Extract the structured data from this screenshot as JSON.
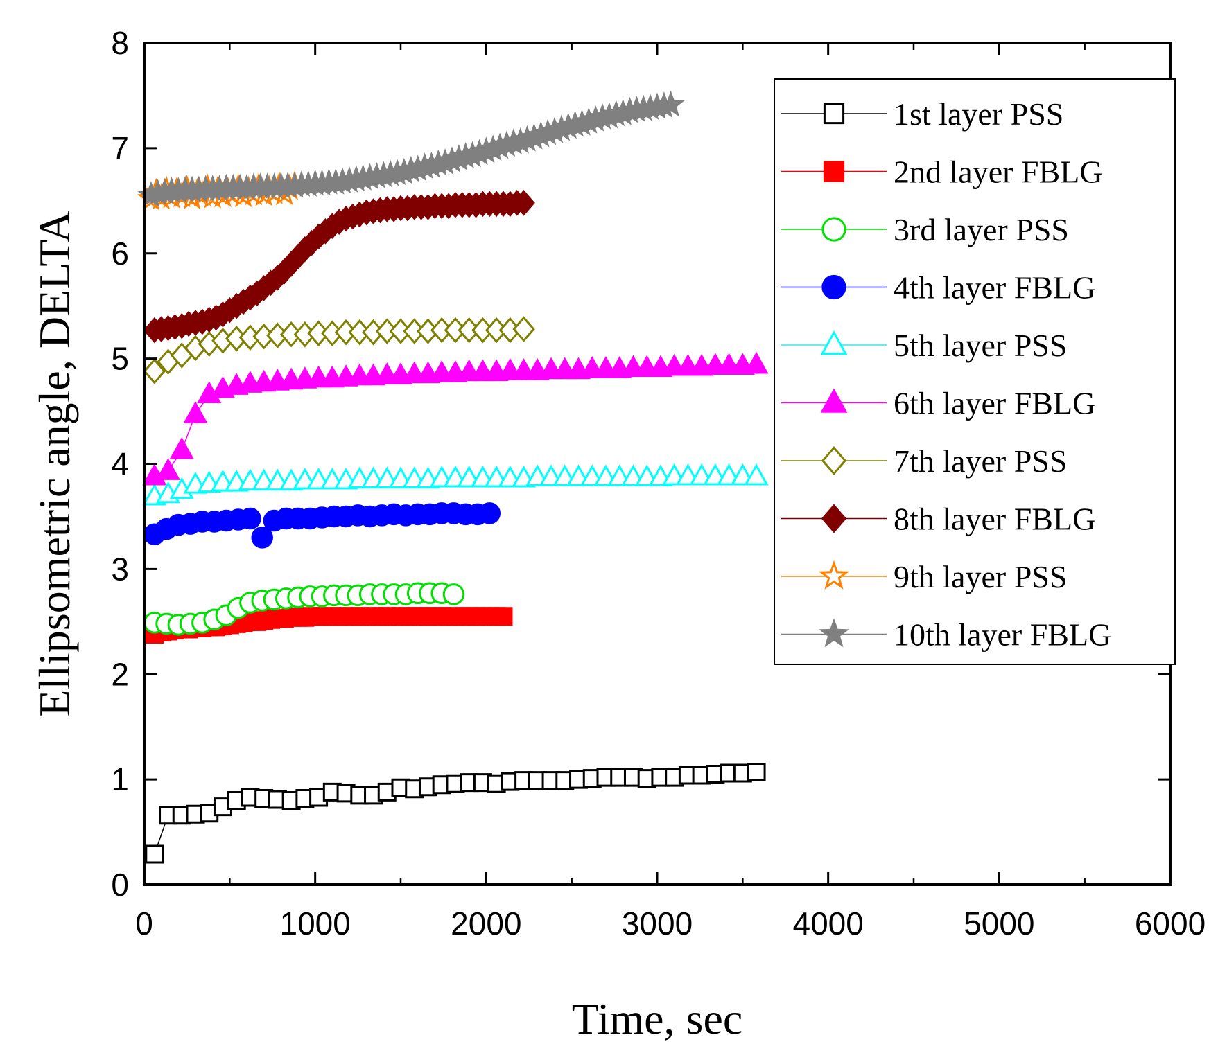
{
  "chart_data": {
    "type": "scatter",
    "title": "",
    "xlabel": "Time, sec",
    "ylabel": "Ellipsometric angle, DELTA",
    "xlim": [
      0,
      6000
    ],
    "ylim": [
      0,
      8
    ],
    "xticks": [
      0,
      1000,
      2000,
      3000,
      4000,
      5000,
      6000
    ],
    "yticks": [
      0,
      1,
      2,
      3,
      4,
      5,
      6,
      7,
      8
    ],
    "xtick_labels": [
      "0",
      "1000",
      "2000",
      "3000",
      "4000",
      "5000",
      "6000"
    ],
    "ytick_labels": [
      "0",
      "1",
      "2",
      "3",
      "4",
      "5",
      "6",
      "7",
      "8"
    ],
    "grid": false,
    "legend_position": "top-right",
    "series": [
      {
        "name": "1st layer PSS",
        "color": "#000000",
        "marker": "square",
        "filled": false,
        "x": [
          60,
          140,
          220,
          300,
          380,
          460,
          540,
          620,
          700,
          780,
          860,
          940,
          1020,
          1100,
          1180,
          1260,
          1340,
          1420,
          1500,
          1580,
          1660,
          1740,
          1820,
          1900,
          1980,
          2060,
          2140,
          2220,
          2300,
          2380,
          2460,
          2540,
          2620,
          2700,
          2780,
          2860,
          2940,
          3020,
          3100,
          3180,
          3260,
          3340,
          3420,
          3500,
          3580
        ],
        "y": [
          0.29,
          0.66,
          0.66,
          0.67,
          0.68,
          0.74,
          0.8,
          0.83,
          0.82,
          0.81,
          0.8,
          0.82,
          0.83,
          0.88,
          0.87,
          0.85,
          0.85,
          0.88,
          0.92,
          0.91,
          0.93,
          0.95,
          0.96,
          0.97,
          0.97,
          0.96,
          0.98,
          0.99,
          0.99,
          0.99,
          0.99,
          1.0,
          1.01,
          1.02,
          1.02,
          1.02,
          1.01,
          1.02,
          1.02,
          1.04,
          1.04,
          1.05,
          1.06,
          1.06,
          1.07
        ]
      },
      {
        "name": "2nd layer FBLG",
        "color": "#ff0000",
        "marker": "square",
        "filled": true,
        "x": [
          60,
          100,
          140,
          180,
          220,
          260,
          300,
          340,
          380,
          420,
          460,
          500,
          540,
          580,
          620,
          660,
          700,
          740,
          780,
          820,
          860,
          900,
          940,
          980,
          1020,
          1060,
          1100,
          1140,
          1180,
          1220,
          1260,
          1300,
          1340,
          1380,
          1420,
          1460,
          1500,
          1540,
          1580,
          1620,
          1660,
          1700,
          1740,
          1780,
          1820,
          1860,
          1900,
          1940,
          1980,
          2020,
          2060,
          2100
        ],
        "y": [
          2.38,
          2.4,
          2.41,
          2.42,
          2.43,
          2.43,
          2.44,
          2.44,
          2.45,
          2.45,
          2.46,
          2.47,
          2.48,
          2.49,
          2.5,
          2.5,
          2.51,
          2.52,
          2.53,
          2.53,
          2.54,
          2.54,
          2.54,
          2.55,
          2.55,
          2.55,
          2.55,
          2.55,
          2.55,
          2.55,
          2.55,
          2.55,
          2.55,
          2.55,
          2.55,
          2.55,
          2.55,
          2.55,
          2.55,
          2.55,
          2.55,
          2.55,
          2.55,
          2.55,
          2.55,
          2.55,
          2.55,
          2.55,
          2.55,
          2.55,
          2.55,
          2.55
        ]
      },
      {
        "name": "3rd layer PSS",
        "color": "#00e000",
        "marker": "circle",
        "filled": false,
        "x": [
          60,
          130,
          200,
          270,
          340,
          410,
          480,
          550,
          620,
          690,
          760,
          830,
          900,
          970,
          1040,
          1110,
          1180,
          1250,
          1320,
          1390,
          1460,
          1530,
          1600,
          1670,
          1740,
          1810
        ],
        "y": [
          2.49,
          2.48,
          2.47,
          2.48,
          2.49,
          2.52,
          2.56,
          2.63,
          2.68,
          2.7,
          2.71,
          2.72,
          2.73,
          2.74,
          2.74,
          2.75,
          2.75,
          2.75,
          2.76,
          2.76,
          2.76,
          2.76,
          2.77,
          2.77,
          2.77,
          2.76
        ]
      },
      {
        "name": "4th layer FBLG",
        "color": "#0000ff",
        "marker": "circle",
        "filled": true,
        "x": [
          60,
          130,
          200,
          270,
          340,
          410,
          480,
          550,
          620,
          690,
          760,
          830,
          900,
          970,
          1040,
          1110,
          1180,
          1250,
          1320,
          1390,
          1460,
          1530,
          1600,
          1670,
          1740,
          1810,
          1880,
          1950,
          2020
        ],
        "y": [
          3.33,
          3.38,
          3.42,
          3.43,
          3.45,
          3.45,
          3.46,
          3.47,
          3.48,
          3.3,
          3.46,
          3.48,
          3.48,
          3.48,
          3.49,
          3.5,
          3.5,
          3.51,
          3.5,
          3.51,
          3.52,
          3.51,
          3.52,
          3.52,
          3.53,
          3.53,
          3.52,
          3.52,
          3.53
        ]
      },
      {
        "name": "5th layer PSS",
        "color": "#00ffff",
        "marker": "triangle",
        "filled": false,
        "x": [
          60,
          140,
          220,
          300,
          380,
          460,
          540,
          620,
          700,
          780,
          860,
          940,
          1020,
          1100,
          1180,
          1260,
          1340,
          1420,
          1500,
          1580,
          1660,
          1740,
          1820,
          1900,
          1980,
          2060,
          2140,
          2220,
          2300,
          2380,
          2460,
          2540,
          2620,
          2700,
          2780,
          2860,
          2940,
          3020,
          3100,
          3180,
          3260,
          3340,
          3420,
          3500,
          3580
        ],
        "y": [
          3.69,
          3.71,
          3.75,
          3.8,
          3.81,
          3.82,
          3.82,
          3.83,
          3.83,
          3.83,
          3.83,
          3.84,
          3.84,
          3.84,
          3.84,
          3.85,
          3.85,
          3.85,
          3.85,
          3.85,
          3.85,
          3.86,
          3.86,
          3.86,
          3.86,
          3.86,
          3.86,
          3.86,
          3.87,
          3.87,
          3.87,
          3.87,
          3.87,
          3.87,
          3.87,
          3.87,
          3.87,
          3.87,
          3.88,
          3.88,
          3.88,
          3.88,
          3.88,
          3.88,
          3.88
        ]
      },
      {
        "name": "6th layer FBLG",
        "color": "#ff00ff",
        "marker": "triangle",
        "filled": true,
        "x": [
          60,
          140,
          220,
          300,
          380,
          460,
          540,
          620,
          700,
          780,
          860,
          940,
          1020,
          1100,
          1180,
          1260,
          1340,
          1420,
          1500,
          1580,
          1660,
          1740,
          1820,
          1900,
          1980,
          2060,
          2140,
          2220,
          2300,
          2380,
          2460,
          2540,
          2620,
          2700,
          2780,
          2860,
          2940,
          3020,
          3100,
          3180,
          3260,
          3340,
          3420,
          3500,
          3580
        ],
        "y": [
          3.88,
          3.93,
          4.13,
          4.47,
          4.66,
          4.71,
          4.74,
          4.76,
          4.77,
          4.78,
          4.79,
          4.8,
          4.81,
          4.81,
          4.82,
          4.83,
          4.83,
          4.84,
          4.84,
          4.85,
          4.85,
          4.86,
          4.86,
          4.87,
          4.87,
          4.87,
          4.88,
          4.88,
          4.88,
          4.89,
          4.89,
          4.89,
          4.9,
          4.9,
          4.9,
          4.91,
          4.91,
          4.91,
          4.92,
          4.92,
          4.92,
          4.93,
          4.93,
          4.93,
          4.94
        ]
      },
      {
        "name": "7th layer PSS",
        "color": "#808000",
        "marker": "diamond",
        "filled": false,
        "x": [
          60,
          140,
          220,
          300,
          380,
          460,
          540,
          620,
          700,
          780,
          860,
          940,
          1020,
          1100,
          1180,
          1260,
          1340,
          1420,
          1500,
          1580,
          1660,
          1740,
          1820,
          1900,
          1980,
          2060,
          2140,
          2220
        ],
        "y": [
          4.88,
          4.97,
          5.03,
          5.1,
          5.14,
          5.17,
          5.19,
          5.2,
          5.21,
          5.22,
          5.23,
          5.23,
          5.24,
          5.24,
          5.25,
          5.25,
          5.25,
          5.26,
          5.26,
          5.26,
          5.26,
          5.27,
          5.27,
          5.27,
          5.27,
          5.27,
          5.27,
          5.28
        ]
      },
      {
        "name": "8th layer FBLG",
        "color": "#800000",
        "marker": "diamond",
        "filled": true,
        "x": [
          60,
          100,
          140,
          180,
          220,
          260,
          300,
          340,
          380,
          420,
          460,
          500,
          540,
          580,
          620,
          660,
          700,
          740,
          780,
          820,
          860,
          900,
          940,
          980,
          1020,
          1060,
          1100,
          1140,
          1180,
          1220,
          1260,
          1300,
          1340,
          1380,
          1420,
          1460,
          1500,
          1540,
          1580,
          1620,
          1660,
          1700,
          1740,
          1780,
          1820,
          1860,
          1900,
          1940,
          1980,
          2020,
          2060,
          2100,
          2140,
          2180,
          2220
        ],
        "y": [
          5.27,
          5.28,
          5.29,
          5.3,
          5.31,
          5.33,
          5.34,
          5.35,
          5.37,
          5.39,
          5.42,
          5.46,
          5.5,
          5.54,
          5.58,
          5.62,
          5.67,
          5.72,
          5.77,
          5.83,
          5.9,
          5.97,
          6.04,
          6.1,
          6.16,
          6.21,
          6.26,
          6.3,
          6.33,
          6.35,
          6.37,
          6.39,
          6.4,
          6.41,
          6.42,
          6.42,
          6.43,
          6.43,
          6.44,
          6.44,
          6.44,
          6.45,
          6.45,
          6.45,
          6.46,
          6.46,
          6.46,
          6.46,
          6.47,
          6.47,
          6.47,
          6.47,
          6.47,
          6.48,
          6.48
        ]
      },
      {
        "name": "9th layer PSS",
        "color": "#ff8000",
        "marker": "star",
        "filled": false,
        "x": [
          40,
          70,
          100,
          130,
          160,
          190,
          220,
          250,
          280,
          310,
          340,
          370,
          400,
          430,
          460,
          490,
          520,
          550,
          580,
          610,
          640,
          670,
          700,
          730,
          760,
          790,
          820,
          850,
          880
        ],
        "y": [
          6.52,
          6.58,
          6.53,
          6.6,
          6.54,
          6.59,
          6.55,
          6.61,
          6.53,
          6.58,
          6.56,
          6.62,
          6.54,
          6.6,
          6.55,
          6.59,
          6.57,
          6.62,
          6.55,
          6.6,
          6.57,
          6.63,
          6.56,
          6.61,
          6.58,
          6.64,
          6.57,
          6.62,
          6.65
        ]
      },
      {
        "name": "10th layer FBLG",
        "color": "#808080",
        "marker": "star",
        "filled": true,
        "x": [
          40,
          80,
          120,
          160,
          200,
          240,
          280,
          320,
          360,
          400,
          440,
          480,
          520,
          560,
          600,
          640,
          680,
          720,
          760,
          800,
          840,
          880,
          920,
          960,
          1000,
          1040,
          1080,
          1120,
          1160,
          1200,
          1240,
          1280,
          1320,
          1360,
          1400,
          1440,
          1480,
          1520,
          1560,
          1600,
          1640,
          1680,
          1720,
          1760,
          1800,
          1840,
          1880,
          1920,
          1960,
          2000,
          2040,
          2080,
          2120,
          2160,
          2200,
          2240,
          2280,
          2320,
          2360,
          2400,
          2440,
          2480,
          2520,
          2560,
          2600,
          2640,
          2680,
          2720,
          2760,
          2800,
          2840,
          2880,
          2920,
          2960,
          3000,
          3040,
          3080
        ],
        "y": [
          6.55,
          6.57,
          6.58,
          6.59,
          6.59,
          6.6,
          6.6,
          6.6,
          6.61,
          6.61,
          6.61,
          6.62,
          6.62,
          6.62,
          6.62,
          6.63,
          6.63,
          6.63,
          6.63,
          6.64,
          6.64,
          6.64,
          6.65,
          6.65,
          6.66,
          6.66,
          6.67,
          6.67,
          6.68,
          6.69,
          6.7,
          6.71,
          6.72,
          6.73,
          6.74,
          6.75,
          6.76,
          6.77,
          6.79,
          6.8,
          6.82,
          6.83,
          6.85,
          6.86,
          6.88,
          6.9,
          6.92,
          6.93,
          6.95,
          6.97,
          6.99,
          7.01,
          7.03,
          7.05,
          7.06,
          7.08,
          7.1,
          7.12,
          7.14,
          7.16,
          7.18,
          7.2,
          7.22,
          7.23,
          7.25,
          7.27,
          7.29,
          7.3,
          7.32,
          7.33,
          7.35,
          7.36,
          7.37,
          7.38,
          7.39,
          7.4,
          7.41
        ]
      }
    ]
  }
}
